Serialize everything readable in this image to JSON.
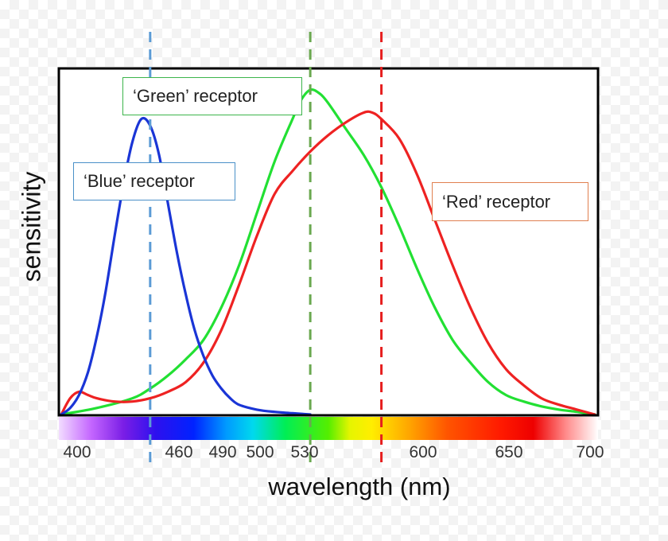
{
  "chart_data": {
    "type": "line",
    "title": "",
    "xlabel": "wavelength (nm)",
    "ylabel": "sensitivity",
    "xlim": [
      400,
      700
    ],
    "ylim": [
      0,
      1
    ],
    "x_tick_labels": [
      400,
      460,
      490,
      500,
      530,
      600,
      650,
      700
    ],
    "series": [
      {
        "name": "'Blue' receptor",
        "color": "#1a35d6",
        "x": [
          400,
          405,
          410,
          415,
          420,
          425,
          430,
          435,
          440,
          445,
          450,
          455,
          460,
          465,
          470,
          475,
          480,
          485,
          490,
          495,
          500,
          510,
          520,
          530,
          540
        ],
        "y": [
          0.0,
          0.02,
          0.06,
          0.13,
          0.24,
          0.38,
          0.55,
          0.71,
          0.84,
          0.91,
          0.89,
          0.8,
          0.65,
          0.5,
          0.37,
          0.26,
          0.18,
          0.12,
          0.08,
          0.05,
          0.03,
          0.015,
          0.008,
          0.004,
          0.0
        ]
      },
      {
        "name": "'Green' receptor",
        "color": "#22e033",
        "x": [
          400,
          420,
          440,
          450,
          460,
          470,
          480,
          490,
          500,
          510,
          520,
          530,
          535,
          540,
          545,
          550,
          560,
          570,
          580,
          590,
          600,
          610,
          620,
          630,
          640,
          650,
          660,
          670,
          680,
          690,
          700
        ],
        "y": [
          0.0,
          0.02,
          0.05,
          0.08,
          0.12,
          0.17,
          0.23,
          0.33,
          0.46,
          0.62,
          0.78,
          0.91,
          0.97,
          1.0,
          0.99,
          0.96,
          0.88,
          0.8,
          0.7,
          0.58,
          0.45,
          0.33,
          0.23,
          0.16,
          0.1,
          0.06,
          0.04,
          0.025,
          0.015,
          0.008,
          0.0
        ]
      },
      {
        "name": "'Red' receptor",
        "color": "#ee2222",
        "x": [
          400,
          405,
          410,
          415,
          420,
          430,
          440,
          450,
          460,
          470,
          480,
          490,
          500,
          510,
          520,
          530,
          540,
          550,
          560,
          570,
          575,
          580,
          590,
          600,
          610,
          620,
          630,
          640,
          650,
          660,
          670,
          680,
          690,
          700
        ],
        "y": [
          0.0,
          0.05,
          0.07,
          0.06,
          0.05,
          0.04,
          0.04,
          0.05,
          0.07,
          0.1,
          0.16,
          0.26,
          0.4,
          0.55,
          0.68,
          0.75,
          0.81,
          0.86,
          0.9,
          0.93,
          0.93,
          0.91,
          0.85,
          0.74,
          0.6,
          0.46,
          0.33,
          0.22,
          0.14,
          0.09,
          0.05,
          0.03,
          0.015,
          0.0
        ]
      }
    ],
    "reference_lines": [
      {
        "x": 450,
        "color": "#5b9bd5",
        "style": "dashed"
      },
      {
        "x": 540,
        "color": "#6aa84f",
        "style": "dashed"
      },
      {
        "x": 580,
        "color": "#e61e1e",
        "style": "dashed"
      }
    ],
    "callouts": {
      "green": "‘Green’ receptor",
      "blue": "‘Blue’ receptor",
      "red": "‘Red’ receptor"
    },
    "spectrum_bar": true,
    "grid": false
  }
}
